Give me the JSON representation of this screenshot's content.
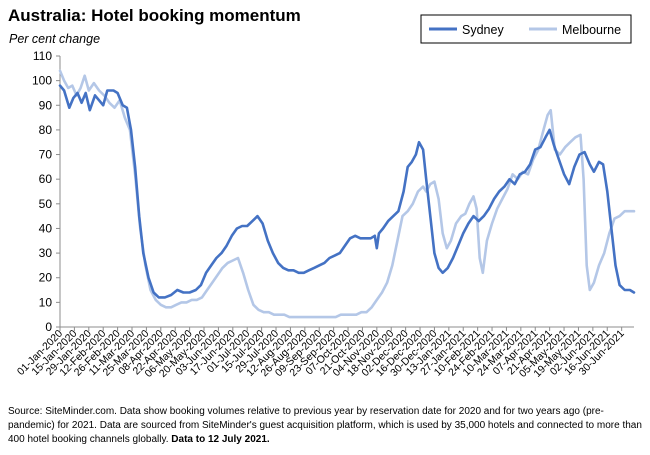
{
  "title": "Australia: Hotel booking momentum",
  "subtitle": "Per cent change",
  "footer": {
    "text": "Source: SiteMinder.com.  Data show booking volumes relative to previous year by reservation date for 2020 and for two years ago (pre-pandemic) for 2021.  Data are sourced from SiteMinder's guest acquisition platform, which is used by 35,000 hotels and connected to more than 400 hotel booking channels globally.",
    "bold": "Data to 12 July 2021."
  },
  "chart_data": {
    "type": "line",
    "title": "Australia: Hotel booking momentum",
    "ylabel": "Per cent change",
    "xlabel": "",
    "ylim": [
      0,
      110
    ],
    "yticks": [
      0,
      10,
      20,
      30,
      40,
      50,
      60,
      70,
      80,
      90,
      100,
      110
    ],
    "xlim": [
      "2020-01-01",
      "2021-07-12"
    ],
    "grid": false,
    "legend": "top-right",
    "xticks": [
      "01-Jan-2020",
      "15-Jan-2020",
      "29-Jan-2020",
      "12-Feb-2020",
      "26-Feb-2020",
      "11-Mar-2020",
      "25-Mar-2020",
      "08-Apr-2020",
      "22-Apr-2020",
      "06-May-2020",
      "20-May-2020",
      "03-Jun-2020",
      "17-Jun-2020",
      "01-Jul-2020",
      "15-Jul-2020",
      "29-Jul-2020",
      "12-Aug-2020",
      "26-Aug-2020",
      "09-Sep-2020",
      "23-Sep-2020",
      "07-Oct-2020",
      "21-Oct-2020",
      "04-Nov-2020",
      "18-Nov-2020",
      "02-Dec-2020",
      "16-Dec-2020",
      "30-Dec-2020",
      "13-Jan-2021",
      "27-Jan-2021",
      "10-Feb-2021",
      "24-Feb-2021",
      "10-Mar-2021",
      "24-Mar-2021",
      "07-Apr-2021",
      "21-Apr-2021",
      "05-May-2021",
      "19-May-2021",
      "02-Jun-2021",
      "16-Jun-2021",
      "30-Jun-2021"
    ],
    "series": [
      {
        "name": "Sydney",
        "color": "#4472C4",
        "points": [
          [
            "2020-01-01",
            98
          ],
          [
            "2020-01-05",
            96
          ],
          [
            "2020-01-10",
            89
          ],
          [
            "2020-01-14",
            93
          ],
          [
            "2020-01-18",
            95
          ],
          [
            "2020-01-22",
            91
          ],
          [
            "2020-01-26",
            95
          ],
          [
            "2020-01-30",
            88
          ],
          [
            "2020-02-04",
            94
          ],
          [
            "2020-02-08",
            92
          ],
          [
            "2020-02-12",
            90
          ],
          [
            "2020-02-16",
            96
          ],
          [
            "2020-02-22",
            96
          ],
          [
            "2020-02-26",
            95
          ],
          [
            "2020-03-02",
            90
          ],
          [
            "2020-03-06",
            89
          ],
          [
            "2020-03-10",
            80
          ],
          [
            "2020-03-14",
            65
          ],
          [
            "2020-03-18",
            45
          ],
          [
            "2020-03-22",
            30
          ],
          [
            "2020-03-27",
            20
          ],
          [
            "2020-04-01",
            14
          ],
          [
            "2020-04-06",
            12
          ],
          [
            "2020-04-12",
            12
          ],
          [
            "2020-04-18",
            13
          ],
          [
            "2020-04-24",
            15
          ],
          [
            "2020-04-30",
            14
          ],
          [
            "2020-05-06",
            14
          ],
          [
            "2020-05-12",
            15
          ],
          [
            "2020-05-17",
            17
          ],
          [
            "2020-05-22",
            22
          ],
          [
            "2020-05-27",
            25
          ],
          [
            "2020-06-01",
            28
          ],
          [
            "2020-06-06",
            30
          ],
          [
            "2020-06-11",
            33
          ],
          [
            "2020-06-16",
            37
          ],
          [
            "2020-06-21",
            40
          ],
          [
            "2020-06-26",
            41
          ],
          [
            "2020-07-01",
            41
          ],
          [
            "2020-07-06",
            43
          ],
          [
            "2020-07-11",
            45
          ],
          [
            "2020-07-16",
            42
          ],
          [
            "2020-07-21",
            35
          ],
          [
            "2020-07-26",
            30
          ],
          [
            "2020-07-31",
            26
          ],
          [
            "2020-08-05",
            24
          ],
          [
            "2020-08-10",
            23
          ],
          [
            "2020-08-15",
            23
          ],
          [
            "2020-08-20",
            22
          ],
          [
            "2020-08-25",
            22
          ],
          [
            "2020-08-30",
            23
          ],
          [
            "2020-09-04",
            24
          ],
          [
            "2020-09-09",
            25
          ],
          [
            "2020-09-14",
            26
          ],
          [
            "2020-09-19",
            28
          ],
          [
            "2020-09-24",
            29
          ],
          [
            "2020-09-29",
            30
          ],
          [
            "2020-10-04",
            33
          ],
          [
            "2020-10-09",
            36
          ],
          [
            "2020-10-14",
            37
          ],
          [
            "2020-10-19",
            36
          ],
          [
            "2020-10-24",
            36
          ],
          [
            "2020-10-29",
            36
          ],
          [
            "2020-11-02",
            37
          ],
          [
            "2020-11-04",
            32
          ],
          [
            "2020-11-06",
            38
          ],
          [
            "2020-11-10",
            40
          ],
          [
            "2020-11-15",
            43
          ],
          [
            "2020-11-20",
            45
          ],
          [
            "2020-11-25",
            47
          ],
          [
            "2020-11-30",
            55
          ],
          [
            "2020-12-04",
            65
          ],
          [
            "2020-12-08",
            67
          ],
          [
            "2020-12-12",
            70
          ],
          [
            "2020-12-15",
            75
          ],
          [
            "2020-12-19",
            72
          ],
          [
            "2020-12-22",
            60
          ],
          [
            "2020-12-26",
            45
          ],
          [
            "2020-12-30",
            30
          ],
          [
            "2021-01-03",
            24
          ],
          [
            "2021-01-07",
            22
          ],
          [
            "2021-01-12",
            24
          ],
          [
            "2021-01-17",
            28
          ],
          [
            "2021-01-22",
            33
          ],
          [
            "2021-01-27",
            38
          ],
          [
            "2021-02-01",
            42
          ],
          [
            "2021-02-06",
            45
          ],
          [
            "2021-02-11",
            43
          ],
          [
            "2021-02-16",
            45
          ],
          [
            "2021-02-21",
            48
          ],
          [
            "2021-02-26",
            52
          ],
          [
            "2021-03-03",
            55
          ],
          [
            "2021-03-08",
            57
          ],
          [
            "2021-03-13",
            60
          ],
          [
            "2021-03-18",
            58
          ],
          [
            "2021-03-23",
            62
          ],
          [
            "2021-03-28",
            63
          ],
          [
            "2021-04-02",
            66
          ],
          [
            "2021-04-07",
            72
          ],
          [
            "2021-04-12",
            73
          ],
          [
            "2021-04-17",
            77
          ],
          [
            "2021-04-21",
            80
          ],
          [
            "2021-04-25",
            74
          ],
          [
            "2021-04-30",
            68
          ],
          [
            "2021-05-05",
            62
          ],
          [
            "2021-05-10",
            58
          ],
          [
            "2021-05-15",
            65
          ],
          [
            "2021-05-20",
            70
          ],
          [
            "2021-05-25",
            71
          ],
          [
            "2021-05-30",
            66
          ],
          [
            "2021-06-03",
            63
          ],
          [
            "2021-06-08",
            67
          ],
          [
            "2021-06-12",
            66
          ],
          [
            "2021-06-16",
            55
          ],
          [
            "2021-06-20",
            40
          ],
          [
            "2021-06-24",
            25
          ],
          [
            "2021-06-28",
            17
          ],
          [
            "2021-07-03",
            15
          ],
          [
            "2021-07-08",
            15
          ],
          [
            "2021-07-12",
            14
          ]
        ]
      },
      {
        "name": "Melbourne",
        "color": "#B4C7E7",
        "points": [
          [
            "2020-01-01",
            104
          ],
          [
            "2020-01-05",
            100
          ],
          [
            "2020-01-09",
            97
          ],
          [
            "2020-01-13",
            98
          ],
          [
            "2020-01-17",
            94
          ],
          [
            "2020-01-21",
            97
          ],
          [
            "2020-01-25",
            102
          ],
          [
            "2020-01-29",
            96
          ],
          [
            "2020-02-03",
            99
          ],
          [
            "2020-02-08",
            96
          ],
          [
            "2020-02-13",
            94
          ],
          [
            "2020-02-18",
            91
          ],
          [
            "2020-02-23",
            89
          ],
          [
            "2020-02-28",
            92
          ],
          [
            "2020-03-04",
            85
          ],
          [
            "2020-03-09",
            80
          ],
          [
            "2020-03-14",
            62
          ],
          [
            "2020-03-19",
            40
          ],
          [
            "2020-03-24",
            25
          ],
          [
            "2020-03-29",
            15
          ],
          [
            "2020-04-03",
            11
          ],
          [
            "2020-04-08",
            9
          ],
          [
            "2020-04-13",
            8
          ],
          [
            "2020-04-18",
            8
          ],
          [
            "2020-04-23",
            9
          ],
          [
            "2020-04-28",
            10
          ],
          [
            "2020-05-03",
            10
          ],
          [
            "2020-05-08",
            11
          ],
          [
            "2020-05-13",
            11
          ],
          [
            "2020-05-18",
            12
          ],
          [
            "2020-05-23",
            15
          ],
          [
            "2020-05-28",
            18
          ],
          [
            "2020-06-02",
            21
          ],
          [
            "2020-06-07",
            24
          ],
          [
            "2020-06-12",
            26
          ],
          [
            "2020-06-17",
            27
          ],
          [
            "2020-06-22",
            28
          ],
          [
            "2020-06-27",
            22
          ],
          [
            "2020-07-02",
            15
          ],
          [
            "2020-07-07",
            9
          ],
          [
            "2020-07-12",
            7
          ],
          [
            "2020-07-17",
            6
          ],
          [
            "2020-07-22",
            6
          ],
          [
            "2020-07-27",
            5
          ],
          [
            "2020-08-01",
            5
          ],
          [
            "2020-08-06",
            5
          ],
          [
            "2020-08-11",
            4
          ],
          [
            "2020-08-16",
            4
          ],
          [
            "2020-08-21",
            4
          ],
          [
            "2020-08-26",
            4
          ],
          [
            "2020-08-31",
            4
          ],
          [
            "2020-09-05",
            4
          ],
          [
            "2020-09-10",
            4
          ],
          [
            "2020-09-15",
            4
          ],
          [
            "2020-09-20",
            4
          ],
          [
            "2020-09-25",
            4
          ],
          [
            "2020-09-30",
            5
          ],
          [
            "2020-10-05",
            5
          ],
          [
            "2020-10-10",
            5
          ],
          [
            "2020-10-15",
            5
          ],
          [
            "2020-10-20",
            6
          ],
          [
            "2020-10-25",
            6
          ],
          [
            "2020-10-30",
            8
          ],
          [
            "2020-11-04",
            11
          ],
          [
            "2020-11-09",
            14
          ],
          [
            "2020-11-14",
            18
          ],
          [
            "2020-11-19",
            25
          ],
          [
            "2020-11-24",
            35
          ],
          [
            "2020-11-29",
            45
          ],
          [
            "2020-12-04",
            47
          ],
          [
            "2020-12-09",
            50
          ],
          [
            "2020-12-14",
            55
          ],
          [
            "2020-12-19",
            57
          ],
          [
            "2020-12-22",
            55
          ],
          [
            "2020-12-26",
            58
          ],
          [
            "2020-12-30",
            59
          ],
          [
            "2021-01-03",
            52
          ],
          [
            "2021-01-07",
            38
          ],
          [
            "2021-01-11",
            32
          ],
          [
            "2021-01-15",
            35
          ],
          [
            "2021-01-20",
            42
          ],
          [
            "2021-01-25",
            45
          ],
          [
            "2021-01-29",
            46
          ],
          [
            "2021-02-02",
            50
          ],
          [
            "2021-02-06",
            53
          ],
          [
            "2021-02-09",
            48
          ],
          [
            "2021-02-12",
            28
          ],
          [
            "2021-02-15",
            22
          ],
          [
            "2021-02-19",
            35
          ],
          [
            "2021-02-24",
            42
          ],
          [
            "2021-03-01",
            48
          ],
          [
            "2021-03-06",
            52
          ],
          [
            "2021-03-11",
            56
          ],
          [
            "2021-03-16",
            62
          ],
          [
            "2021-03-21",
            60
          ],
          [
            "2021-03-26",
            63
          ],
          [
            "2021-03-31",
            62
          ],
          [
            "2021-04-05",
            68
          ],
          [
            "2021-04-10",
            72
          ],
          [
            "2021-04-15",
            80
          ],
          [
            "2021-04-19",
            86
          ],
          [
            "2021-04-22",
            88
          ],
          [
            "2021-04-26",
            72
          ],
          [
            "2021-05-01",
            70
          ],
          [
            "2021-05-06",
            73
          ],
          [
            "2021-05-11",
            75
          ],
          [
            "2021-05-16",
            77
          ],
          [
            "2021-05-21",
            78
          ],
          [
            "2021-05-24",
            60
          ],
          [
            "2021-05-27",
            25
          ],
          [
            "2021-05-30",
            15
          ],
          [
            "2021-06-03",
            18
          ],
          [
            "2021-06-08",
            25
          ],
          [
            "2021-06-13",
            30
          ],
          [
            "2021-06-18",
            38
          ],
          [
            "2021-06-23",
            44
          ],
          [
            "2021-06-28",
            45
          ],
          [
            "2021-07-03",
            47
          ],
          [
            "2021-07-08",
            47
          ],
          [
            "2021-07-12",
            47
          ]
        ]
      }
    ]
  }
}
